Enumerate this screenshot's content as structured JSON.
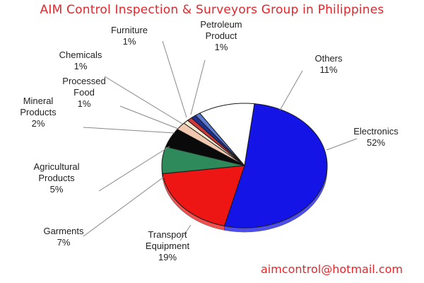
{
  "header": {
    "title": "AIM Control Inspection & Surveyors Group in Philippines"
  },
  "footer": {
    "email": "aimcontrol@hotmail.com"
  },
  "chart_data": {
    "type": "pie",
    "title": "",
    "slices": [
      {
        "label_lines": [
          "Electronics"
        ],
        "value_text": "52%",
        "value": 52,
        "color": "#1414e6"
      },
      {
        "label_lines": [
          "Transport",
          "Equipment"
        ],
        "value_text": "19%",
        "value": 19,
        "color": "#ee1515"
      },
      {
        "label_lines": [
          "Garments"
        ],
        "value_text": "7%",
        "value": 7,
        "color": "#2e8a5a"
      },
      {
        "label_lines": [
          "Agricultural",
          "Products"
        ],
        "value_text": "5%",
        "value": 5,
        "color": "#0a0a0a"
      },
      {
        "label_lines": [
          "Mineral",
          "Products"
        ],
        "value_text": "2%",
        "value": 2,
        "color": "#f1c9b0"
      },
      {
        "label_lines": [
          "Processed",
          "Food"
        ],
        "value_text": "1%",
        "value": 1,
        "color": "#f7ead2"
      },
      {
        "label_lines": [
          "Chemicals"
        ],
        "value_text": "1%",
        "value": 1,
        "color": "#cf3a3a"
      },
      {
        "label_lines": [
          "Furniture"
        ],
        "value_text": "1%",
        "value": 1,
        "color": "#1f2f8f"
      },
      {
        "label_lines": [
          "Petroleum",
          "Product"
        ],
        "value_text": "1%",
        "value": 1,
        "color": "#5a7ad0"
      },
      {
        "label_lines": [
          "Others"
        ],
        "value_text": "11%",
        "value": 11,
        "color": "#ffffff"
      }
    ],
    "legend": "none",
    "data_labels": "outside with leader lines"
  }
}
